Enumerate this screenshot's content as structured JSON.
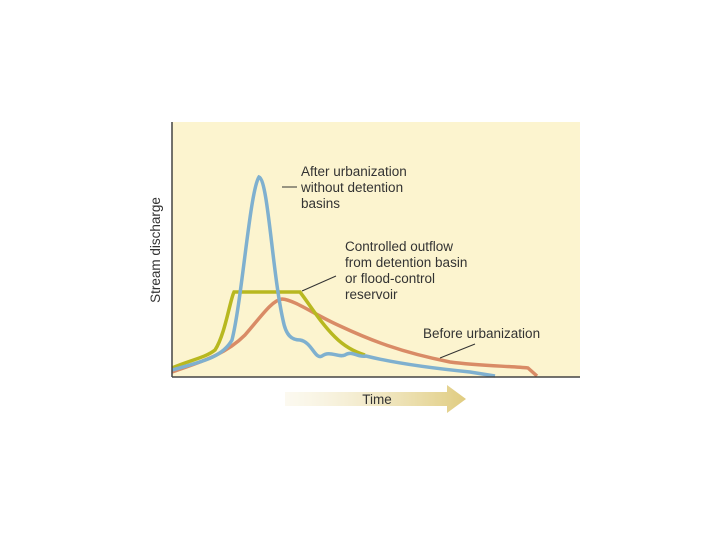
{
  "axes": {
    "y_label": "Stream discharge",
    "x_label": "Time"
  },
  "annotations": [
    {
      "lines": [
        "After urbanization",
        "without detention",
        "basins"
      ]
    },
    {
      "lines": [
        "Controlled outflow",
        "from detention basin",
        "or flood-control",
        "reservoir"
      ]
    },
    {
      "lines": [
        "Before urbanization"
      ]
    }
  ]
}
